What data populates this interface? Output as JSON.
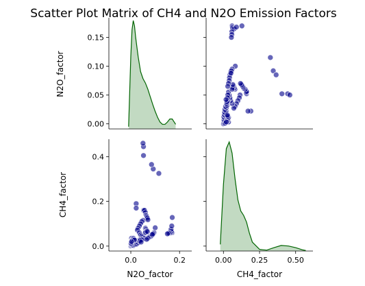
{
  "chart_data": {
    "type": "scatter",
    "title": "Scatter Plot Matrix of CH4 and N2O Emission Factors",
    "variables": [
      "N2O_factor",
      "CH4_factor"
    ],
    "grid": false,
    "colors": {
      "scatter": "#00008b",
      "kde_line": "#006400",
      "kde_fill": "#8fbc8f"
    },
    "limits": {
      "N2O_factor": [
        -0.009,
        0.184
      ],
      "CH4_factor": [
        -0.022,
        0.478
      ]
    },
    "ticks": {
      "N2O_factor": [
        0.0,
        0.05,
        0.1,
        0.15
      ],
      "N2O_factor_labels": [
        "0.00",
        "0.05",
        "0.10",
        "0.15"
      ],
      "CH4_factor": [
        0.0,
        0.2,
        0.4
      ],
      "CH4_factor_labels": [
        "0.0",
        "0.2",
        "0.4"
      ],
      "N2O_factor_bottom": [
        0.0,
        0.2
      ],
      "N2O_factor_bottom_labels": [
        "0.0",
        "0.2"
      ],
      "CH4_factor_bottom": [
        0.0,
        0.25,
        0.5
      ],
      "CH4_factor_bottom_labels": [
        "0.00",
        "0.25",
        "0.50"
      ]
    },
    "points": [
      {
        "n2o": 0.17,
        "ch4": 0.06
      },
      {
        "n2o": 0.168,
        "ch4": 0.062
      },
      {
        "n2o": 0.166,
        "ch4": 0.065
      },
      {
        "n2o": 0.165,
        "ch4": 0.075
      },
      {
        "n2o": 0.16,
        "ch4": 0.058
      },
      {
        "n2o": 0.155,
        "ch4": 0.058
      },
      {
        "n2o": 0.15,
        "ch4": 0.055
      },
      {
        "n2o": 0.168,
        "ch4": 0.09
      },
      {
        "n2o": 0.17,
        "ch4": 0.128
      },
      {
        "n2o": 0.115,
        "ch4": 0.325
      },
      {
        "n2o": 0.092,
        "ch4": 0.345
      },
      {
        "n2o": 0.085,
        "ch4": 0.365
      },
      {
        "n2o": 0.052,
        "ch4": 0.405
      },
      {
        "n2o": 0.052,
        "ch4": 0.445
      },
      {
        "n2o": 0.05,
        "ch4": 0.46
      },
      {
        "n2o": 0.022,
        "ch4": 0.19
      },
      {
        "n2o": 0.022,
        "ch4": 0.17
      },
      {
        "n2o": 0.052,
        "ch4": 0.16
      },
      {
        "n2o": 0.054,
        "ch4": 0.158
      },
      {
        "n2o": 0.056,
        "ch4": 0.16
      },
      {
        "n2o": 0.06,
        "ch4": 0.15
      },
      {
        "n2o": 0.062,
        "ch4": 0.14
      },
      {
        "n2o": 0.064,
        "ch4": 0.135
      },
      {
        "n2o": 0.066,
        "ch4": 0.13
      },
      {
        "n2o": 0.068,
        "ch4": 0.125
      },
      {
        "n2o": 0.07,
        "ch4": 0.118
      },
      {
        "n2o": 0.05,
        "ch4": 0.115
      },
      {
        "n2o": 0.045,
        "ch4": 0.11
      },
      {
        "n2o": 0.04,
        "ch4": 0.1
      },
      {
        "n2o": 0.035,
        "ch4": 0.09
      },
      {
        "n2o": 0.03,
        "ch4": 0.08
      },
      {
        "n2o": 0.027,
        "ch4": 0.072
      },
      {
        "n2o": 0.035,
        "ch4": 0.06
      },
      {
        "n2o": 0.04,
        "ch4": 0.05
      },
      {
        "n2o": 0.045,
        "ch4": 0.045
      },
      {
        "n2o": 0.05,
        "ch4": 0.04
      },
      {
        "n2o": 0.055,
        "ch4": 0.035
      },
      {
        "n2o": 0.05,
        "ch4": 0.03
      },
      {
        "n2o": 0.06,
        "ch4": 0.08
      },
      {
        "n2o": 0.062,
        "ch4": 0.075
      },
      {
        "n2o": 0.065,
        "ch4": 0.07
      },
      {
        "n2o": 0.063,
        "ch4": 0.065
      },
      {
        "n2o": 0.06,
        "ch4": 0.06
      },
      {
        "n2o": 0.068,
        "ch4": 0.065
      },
      {
        "n2o": 0.09,
        "ch4": 0.05
      },
      {
        "n2o": 0.085,
        "ch4": 0.045
      },
      {
        "n2o": 0.08,
        "ch4": 0.042
      },
      {
        "n2o": 0.075,
        "ch4": 0.04
      },
      {
        "n2o": 0.1,
        "ch4": 0.082
      },
      {
        "n2o": 0.095,
        "ch4": 0.06
      },
      {
        "n2o": 0.092,
        "ch4": 0.055
      },
      {
        "n2o": 0.088,
        "ch4": 0.052
      },
      {
        "n2o": 0.07,
        "ch4": 0.035
      },
      {
        "n2o": 0.065,
        "ch4": 0.03
      },
      {
        "n2o": 0.0,
        "ch4": 0.0
      },
      {
        "n2o": 0.002,
        "ch4": 0.002
      },
      {
        "n2o": 0.004,
        "ch4": 0.005
      },
      {
        "n2o": 0.005,
        "ch4": 0.008
      },
      {
        "n2o": 0.007,
        "ch4": 0.004
      },
      {
        "n2o": 0.009,
        "ch4": 0.01
      },
      {
        "n2o": 0.01,
        "ch4": 0.02
      },
      {
        "n2o": 0.012,
        "ch4": 0.003
      },
      {
        "n2o": 0.014,
        "ch4": 0.012
      },
      {
        "n2o": 0.016,
        "ch4": 0.006
      },
      {
        "n2o": 0.018,
        "ch4": 0.015
      },
      {
        "n2o": 0.02,
        "ch4": 0.008
      },
      {
        "n2o": 0.022,
        "ch4": 0.018
      },
      {
        "n2o": 0.025,
        "ch4": 0.01
      },
      {
        "n2o": 0.028,
        "ch4": 0.02
      },
      {
        "n2o": 0.03,
        "ch4": 0.015
      },
      {
        "n2o": 0.032,
        "ch4": 0.025
      },
      {
        "n2o": 0.035,
        "ch4": 0.022
      },
      {
        "n2o": 0.003,
        "ch4": 0.035
      },
      {
        "n2o": 0.006,
        "ch4": 0.03
      },
      {
        "n2o": 0.008,
        "ch4": 0.028
      },
      {
        "n2o": 0.011,
        "ch4": 0.035
      },
      {
        "n2o": 0.013,
        "ch4": 0.03
      },
      {
        "n2o": 0.015,
        "ch4": 0.027
      },
      {
        "n2o": 0.001,
        "ch4": 0.012
      },
      {
        "n2o": 0.003,
        "ch4": 0.02
      },
      {
        "n2o": 0.04,
        "ch4": 0.03
      },
      {
        "n2o": 0.045,
        "ch4": 0.028
      },
      {
        "n2o": 0.038,
        "ch4": 0.024
      },
      {
        "n2o": 0.042,
        "ch4": 0.018
      }
    ],
    "kde_n2o": {
      "x": [
        -0.009,
        0.0,
        0.005,
        0.01,
        0.015,
        0.02,
        0.03,
        0.04,
        0.05,
        0.06,
        0.07,
        0.08,
        0.09,
        0.1,
        0.11,
        0.12,
        0.13,
        0.14,
        0.15,
        0.16,
        0.17,
        0.18,
        0.184
      ],
      "density": [
        0.3,
        9.5,
        13.0,
        14.2,
        13.5,
        12.0,
        9.5,
        7.5,
        6.6,
        6.0,
        5.2,
        4.2,
        3.2,
        2.3,
        1.5,
        0.9,
        0.6,
        0.6,
        0.9,
        1.3,
        1.3,
        0.8,
        0.6
      ]
    },
    "kde_ch4": {
      "x": [
        -0.022,
        0.0,
        0.02,
        0.04,
        0.06,
        0.08,
        0.1,
        0.12,
        0.14,
        0.16,
        0.18,
        0.2,
        0.25,
        0.3,
        0.35,
        0.4,
        0.45,
        0.5,
        0.55,
        0.57
      ],
      "density": [
        0.6,
        6.0,
        9.2,
        9.8,
        8.8,
        6.5,
        4.6,
        3.6,
        3.2,
        2.6,
        1.6,
        0.8,
        0.15,
        0.08,
        0.3,
        0.5,
        0.45,
        0.3,
        0.1,
        0.05
      ]
    }
  }
}
